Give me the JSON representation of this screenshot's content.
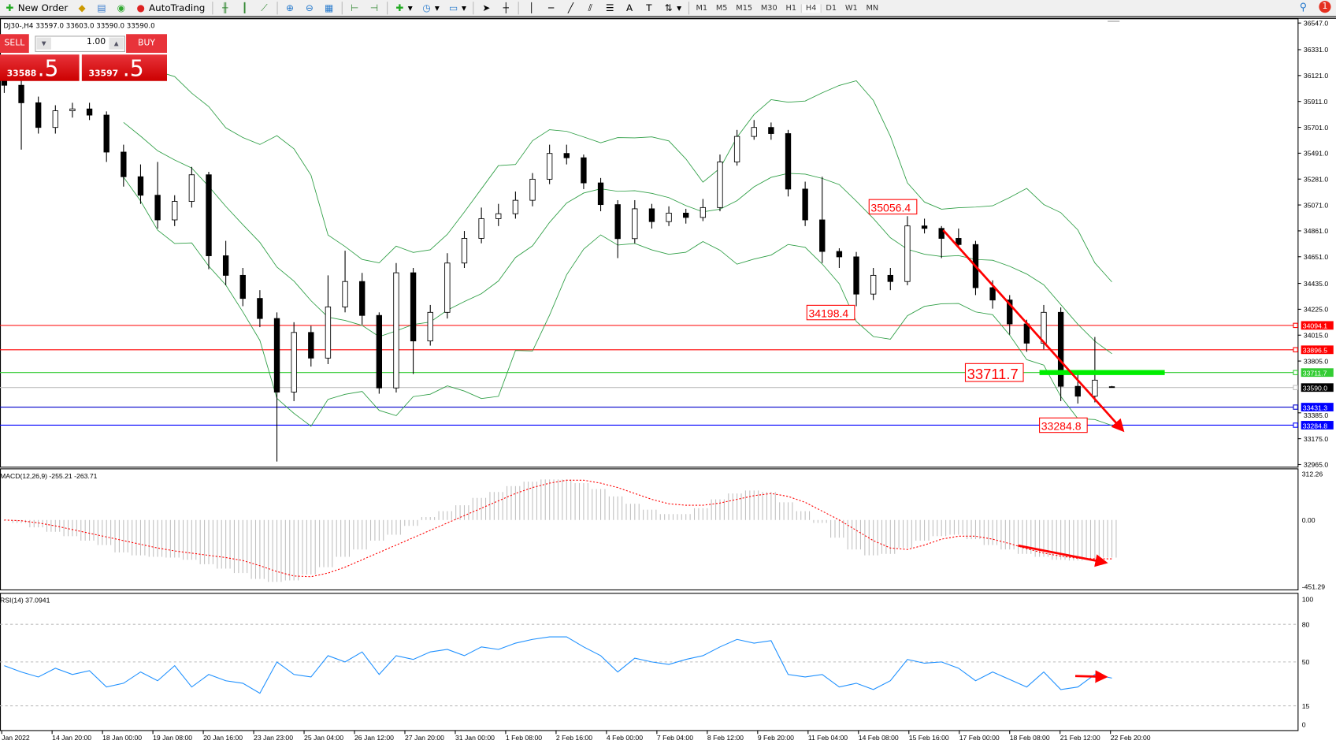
{
  "toolbar": {
    "new_order": "New Order",
    "autotrading": "AutoTrading",
    "timeframes": [
      "M1",
      "M5",
      "M15",
      "M30",
      "H1",
      "H4",
      "D1",
      "W1",
      "MN"
    ],
    "active_timeframe": "H4",
    "notifications": "1"
  },
  "symbol_info": "DJ30-,H4  33597.0 33603.0 33590.0 33590.0",
  "trade_panel": {
    "sell": "SELL",
    "buy": "BUY",
    "lot": "1.00",
    "sell_small": "33588",
    "sell_big": ".5",
    "buy_small": "33597",
    "buy_big": ".5",
    "color": "#e8333a"
  },
  "price_axis": {
    "ticks": [
      "36547.0",
      "36331.0",
      "36121.0",
      "35911.0",
      "35701.0",
      "35491.0",
      "35281.0",
      "35071.0",
      "34861.0",
      "34651.0",
      "34435.0",
      "34225.0",
      "34015.0",
      "33805.0",
      "33385.0",
      "33175.0",
      "32965.0"
    ],
    "range": [
      32965,
      36547
    ]
  },
  "levels": [
    {
      "value": "34094.1",
      "color": "#ff0000",
      "label_bg": "#ff0000"
    },
    {
      "value": "33896.5",
      "color": "#ff0000",
      "label_bg": "#ff0000"
    },
    {
      "value": "33711.7",
      "color": "#33cc33",
      "label_bg": "#33cc33"
    },
    {
      "value": "33590.0",
      "color": "#c0c0c0",
      "label_bg": "#000000"
    },
    {
      "value": "33431.3",
      "color": "#0000cc",
      "label_bg": "#0000ff"
    },
    {
      "value": "33284.8",
      "color": "#0000ff",
      "label_bg": "#0000ff"
    }
  ],
  "annotations": [
    {
      "text": "35056.4",
      "price": 35056.4,
      "bar": 51
    },
    {
      "text": "34198.4",
      "price": 34198.4,
      "bar": 47
    },
    {
      "text": "33711.7",
      "price": 33711.7,
      "bar": 56,
      "large": true
    },
    {
      "text": "33284.8",
      "price": 33284.8,
      "bar": 61
    }
  ],
  "ohlc": [
    [
      36080,
      36150,
      35980,
      36042
    ],
    [
      36042,
      36100,
      35520,
      35900
    ],
    [
      35900,
      35950,
      35650,
      35700
    ],
    [
      35700,
      35880,
      35650,
      35835
    ],
    [
      35835,
      35900,
      35780,
      35850
    ],
    [
      35850,
      35900,
      35760,
      35800
    ],
    [
      35800,
      35830,
      35420,
      35500
    ],
    [
      35500,
      35560,
      35220,
      35300
    ],
    [
      35300,
      35400,
      35080,
      35150
    ],
    [
      35150,
      35420,
      34880,
      34950
    ],
    [
      34950,
      35150,
      34900,
      35100
    ],
    [
      35100,
      35380,
      35050,
      35316
    ],
    [
      35316,
      35340,
      34550,
      34659
    ],
    [
      34659,
      34780,
      34420,
      34500
    ],
    [
      34500,
      34560,
      34250,
      34313
    ],
    [
      34313,
      34380,
      34080,
      34150
    ],
    [
      34150,
      34200,
      32990,
      33553
    ],
    [
      33553,
      34120,
      33480,
      34037
    ],
    [
      34037,
      34090,
      33760,
      33829
    ],
    [
      33829,
      34500,
      33780,
      34244
    ],
    [
      34244,
      34700,
      34200,
      34450
    ],
    [
      34450,
      34520,
      34100,
      34175
    ],
    [
      34175,
      34200,
      33540,
      33587
    ],
    [
      33587,
      34600,
      33550,
      34521
    ],
    [
      34521,
      34560,
      33700,
      33968
    ],
    [
      33968,
      34260,
      33930,
      34200
    ],
    [
      34200,
      34680,
      34150,
      34600
    ],
    [
      34600,
      34860,
      34560,
      34800
    ],
    [
      34800,
      35050,
      34760,
      34960
    ],
    [
      34960,
      35080,
      34900,
      35000
    ],
    [
      35000,
      35180,
      34960,
      35109
    ],
    [
      35109,
      35330,
      35060,
      35280
    ],
    [
      35280,
      35560,
      35240,
      35489
    ],
    [
      35489,
      35560,
      35400,
      35454
    ],
    [
      35454,
      35480,
      35200,
      35250
    ],
    [
      35250,
      35290,
      35020,
      35074
    ],
    [
      35074,
      35110,
      34640,
      34798
    ],
    [
      34798,
      35110,
      34760,
      35040
    ],
    [
      35040,
      35080,
      34880,
      34936
    ],
    [
      34936,
      35060,
      34900,
      35005
    ],
    [
      35005,
      35040,
      34920,
      34970
    ],
    [
      34970,
      35120,
      34940,
      35050
    ],
    [
      35050,
      35480,
      35020,
      35420
    ],
    [
      35420,
      35680,
      35390,
      35627
    ],
    [
      35627,
      35760,
      35600,
      35700
    ],
    [
      35700,
      35740,
      35600,
      35650
    ],
    [
      35650,
      35680,
      35140,
      35200
    ],
    [
      35200,
      35260,
      34900,
      34950
    ],
    [
      34950,
      35300,
      34600,
      34694
    ],
    [
      34694,
      34720,
      34560,
      34650
    ],
    [
      34650,
      34690,
      34250,
      34348
    ],
    [
      34348,
      34560,
      34300,
      34500
    ],
    [
      34500,
      34560,
      34380,
      34450
    ],
    [
      34450,
      34980,
      34420,
      34901
    ],
    [
      34901,
      34960,
      34840,
      34881
    ],
    [
      34881,
      34900,
      34640,
      34800
    ],
    [
      34800,
      34880,
      34720,
      34750
    ],
    [
      34750,
      34780,
      34340,
      34400
    ],
    [
      34400,
      34460,
      34230,
      34300
    ],
    [
      34300,
      34340,
      34020,
      34106
    ],
    [
      34106,
      34140,
      33880,
      33950
    ],
    [
      33950,
      34260,
      33900,
      34200
    ],
    [
      34200,
      34240,
      33480,
      33600
    ],
    [
      33600,
      33700,
      33460,
      33520
    ],
    [
      33520,
      34000,
      33470,
      33650
    ],
    [
      33597,
      33603,
      33590,
      33590
    ]
  ],
  "macd": {
    "label": "MACD(12,26,9) -255.21 -263.71",
    "ticks": [
      "312.26",
      "0.00",
      "-451.29"
    ],
    "range": [
      -451.29,
      312.26
    ],
    "histogram_color": "#c0c0c0",
    "signal_color": "#ff0000",
    "histogram": [
      -5,
      -20,
      -50,
      -80,
      -110,
      -140,
      -170,
      -220,
      -240,
      -250,
      -255,
      -270,
      -300,
      -330,
      -360,
      -400,
      -420,
      -410,
      -370,
      -320,
      -250,
      -200,
      -140,
      -100,
      -40,
      20,
      60,
      100,
      150,
      190,
      230,
      260,
      275,
      275,
      250,
      210,
      160,
      110,
      70,
      40,
      40,
      80,
      140,
      180,
      200,
      190,
      120,
      60,
      -20,
      -120,
      -200,
      -240,
      -230,
      -190,
      -140,
      -110,
      -100,
      -130,
      -170,
      -200,
      -230,
      -250,
      -270,
      -275,
      -265,
      -255.21
    ],
    "signal": [
      0,
      -5,
      -20,
      -40,
      -65,
      -90,
      -115,
      -140,
      -165,
      -190,
      -210,
      -225,
      -240,
      -255,
      -275,
      -310,
      -350,
      -380,
      -385,
      -360,
      -320,
      -270,
      -220,
      -170,
      -120,
      -70,
      -20,
      30,
      80,
      130,
      180,
      220,
      250,
      270,
      270,
      250,
      220,
      180,
      140,
      110,
      100,
      100,
      115,
      140,
      165,
      180,
      160,
      120,
      60,
      0,
      -70,
      -140,
      -190,
      -200,
      -170,
      -130,
      -110,
      -110,
      -130,
      -160,
      -195,
      -225,
      -245,
      -260,
      -263,
      -263.71
    ]
  },
  "rsi": {
    "label": "RSI(14) 37.0941",
    "ticks": [
      "100",
      "80",
      "50",
      "15",
      "0"
    ],
    "levels": [
      80,
      50,
      15
    ],
    "color": "#1e90ff",
    "values": [
      47,
      42,
      38,
      45,
      40,
      43,
      30,
      33,
      42,
      35,
      47,
      30,
      40,
      35,
      33,
      25,
      50,
      40,
      38,
      55,
      50,
      58,
      40,
      55,
      52,
      58,
      60,
      55,
      62,
      60,
      65,
      68,
      70,
      70,
      62,
      55,
      42,
      53,
      50,
      48,
      52,
      55,
      62,
      68,
      65,
      67,
      40,
      38,
      40,
      30,
      33,
      28,
      35,
      52,
      49,
      50,
      45,
      35,
      42,
      36,
      30,
      42,
      28,
      30,
      40,
      37.0941
    ]
  },
  "time_axis": [
    "Jan 2022",
    "14 Jan 20:00",
    "18 Jan 00:00",
    "19 Jan 08:00",
    "20 Jan 16:00",
    "23 Jan 23:00",
    "25 Jan 04:00",
    "26 Jan 12:00",
    "27 Jan 20:00",
    "31 Jan 00:00",
    "1 Feb 08:00",
    "2 Feb 16:00",
    "4 Feb 00:00",
    "7 Feb 04:00",
    "8 Feb 12:00",
    "9 Feb 20:00",
    "11 Feb 04:00",
    "14 Feb 08:00",
    "15 Feb 16:00",
    "17 Feb 00:00",
    "18 Feb 08:00",
    "21 Feb 12:00",
    "22 Feb 20:00"
  ],
  "colors": {
    "bollinger": "#2e9e45",
    "candle": "#000000",
    "arrows": "#ff0000",
    "support_bar": "#00ee00"
  }
}
